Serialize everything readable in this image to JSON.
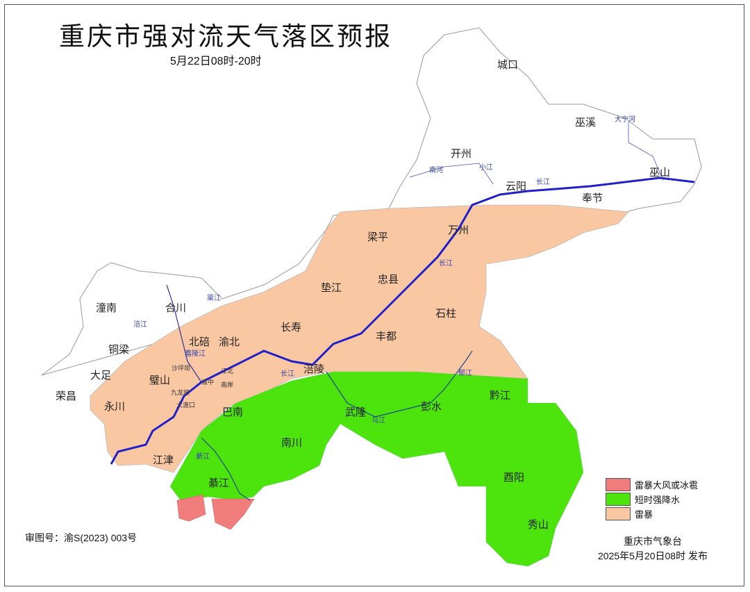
{
  "header": {
    "title": "重庆市强对流天气落区预报",
    "period": "5月22日08时-20时"
  },
  "colors": {
    "thunderstorm": "#F9C8A2",
    "short_heavy_rain": "#4CE40C",
    "gale_or_hail": "#F07C7C",
    "river": "#2020C8",
    "border": "#999999"
  },
  "legend": [
    {
      "label": "雷暴大风或冰雹",
      "color": "#F07C7C"
    },
    {
      "label": "短时强降水",
      "color": "#4CE40C"
    },
    {
      "label": "雷暴",
      "color": "#F9C8A2"
    }
  ],
  "districts": [
    "城口",
    "巫溪",
    "开州",
    "云阳",
    "奉节",
    "巫山",
    "梁平",
    "万州",
    "忠县",
    "垫江",
    "石柱",
    "长寿",
    "丰都",
    "涪陵",
    "潼南",
    "合川",
    "铜梁",
    "北碚",
    "渝北",
    "大足",
    "璧山",
    "荣昌",
    "永川",
    "巴南",
    "江津",
    "南川",
    "武隆",
    "彭水",
    "黔江",
    "綦江",
    "酉阳",
    "秀山"
  ],
  "urban_districts": [
    "沙坪坝",
    "江北",
    "渝中",
    "南岸",
    "九龙坡",
    "大渡口"
  ],
  "rivers": [
    "长江",
    "长江",
    "长江",
    "嘉陵江",
    "涪江",
    "渠江",
    "乌江",
    "郁江",
    "綦江",
    "南河",
    "小江",
    "大宁河"
  ],
  "footer": {
    "approval_no": "审图号：渝S(2023) 003号",
    "issuer": "重庆市气象台",
    "issued_time": "2025年5月20日08时  发布"
  }
}
